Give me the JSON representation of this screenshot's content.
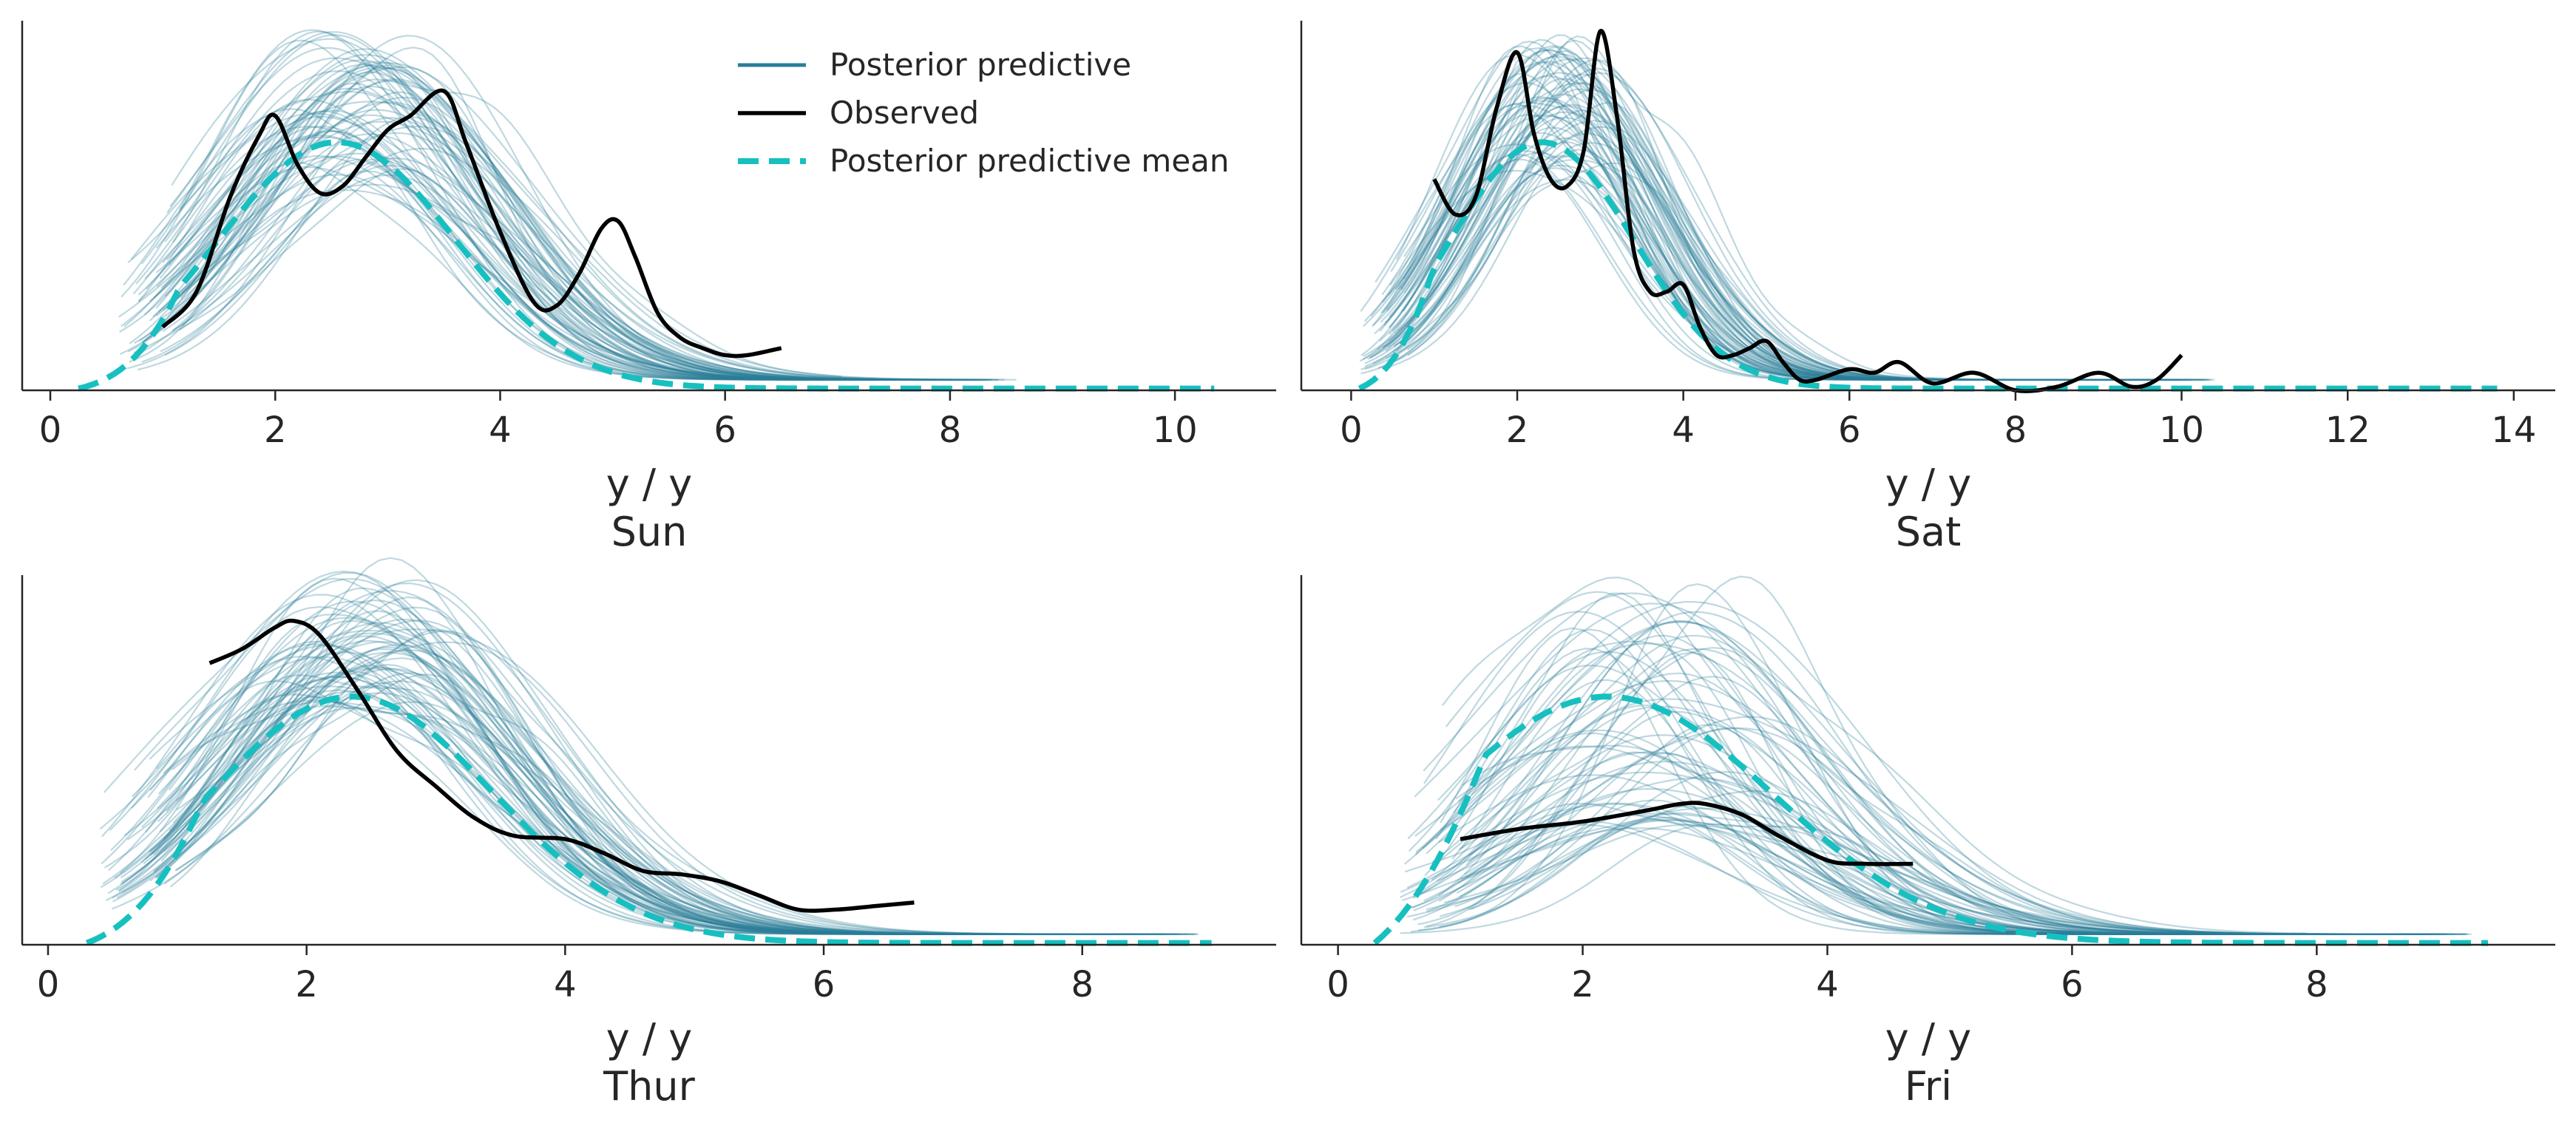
{
  "colors": {
    "posterior_predictive": "#2a7d99",
    "observed": "#000000",
    "posterior_mean": "#17c0c0",
    "axis": "#262626"
  },
  "legend": {
    "posterior_predictive": "Posterior predictive",
    "observed": "Observed",
    "posterior_mean": "Posterior predictive mean"
  },
  "chart_data": [
    {
      "type": "line",
      "panel": "Sun",
      "xlabel": "y / y",
      "title": "Sun",
      "xlim": [
        -0.25,
        10.9
      ],
      "ylim": [
        0,
        1.05
      ],
      "xticks": [
        0,
        2,
        4,
        6,
        8,
        10
      ],
      "grid": false,
      "legend_position": "top-right",
      "mean": {
        "mu": 2.55,
        "sigma": 1.05,
        "xmin": 0.25,
        "xmax": 10.35
      },
      "observed": {
        "x": [
          1.0,
          1.3,
          1.6,
          1.85,
          2.0,
          2.2,
          2.4,
          2.6,
          2.8,
          3.0,
          3.2,
          3.5,
          3.7,
          4.0,
          4.3,
          4.5,
          4.7,
          4.9,
          5.05,
          5.2,
          5.4,
          5.6,
          5.8,
          6.0,
          6.2,
          6.5
        ],
        "y": [
          0.18,
          0.28,
          0.55,
          0.72,
          0.78,
          0.64,
          0.56,
          0.58,
          0.66,
          0.74,
          0.78,
          0.85,
          0.7,
          0.45,
          0.25,
          0.24,
          0.33,
          0.46,
          0.48,
          0.38,
          0.22,
          0.15,
          0.12,
          0.1,
          0.1,
          0.12
        ]
      },
      "pp": {
        "count": 70,
        "mu": 2.75,
        "mu_spread": 0.5,
        "sigma": 1.15,
        "sigma_spread": 0.2,
        "xmin": 0.6,
        "xmax": 8.6,
        "peak_min": 0.55,
        "peak_max": 1.0
      }
    },
    {
      "type": "line",
      "panel": "Sat",
      "xlabel": "y / y",
      "title": "Sat",
      "xlim": [
        -0.6,
        14.5
      ],
      "ylim": [
        0,
        1.05
      ],
      "xticks": [
        0,
        2,
        4,
        6,
        8,
        10,
        12,
        14
      ],
      "grid": false,
      "mean": {
        "mu": 2.3,
        "sigma": 1.1,
        "xmin": 0.1,
        "xmax": 13.8
      },
      "observed": {
        "x": [
          1.0,
          1.25,
          1.5,
          1.75,
          2.0,
          2.2,
          2.4,
          2.6,
          2.8,
          3.0,
          3.2,
          3.4,
          3.6,
          3.8,
          4.0,
          4.2,
          4.4,
          4.6,
          4.8,
          5.0,
          5.2,
          5.4,
          5.6,
          6.0,
          6.3,
          6.6,
          7.0,
          7.5,
          8.0,
          8.5,
          9.0,
          9.4,
          9.7,
          10.0
        ],
        "y": [
          0.6,
          0.5,
          0.55,
          0.8,
          0.96,
          0.73,
          0.6,
          0.58,
          0.68,
          1.02,
          0.78,
          0.4,
          0.28,
          0.28,
          0.3,
          0.18,
          0.1,
          0.1,
          0.12,
          0.14,
          0.08,
          0.03,
          0.03,
          0.06,
          0.05,
          0.08,
          0.02,
          0.05,
          0.0,
          0.01,
          0.05,
          0.01,
          0.03,
          0.1
        ]
      },
      "pp": {
        "count": 70,
        "mu": 2.5,
        "mu_spread": 0.45,
        "sigma": 1.1,
        "sigma_spread": 0.18,
        "xmin": 0.1,
        "xmax": 10.4,
        "peak_min": 0.6,
        "peak_max": 0.95
      }
    },
    {
      "type": "line",
      "panel": "Thur",
      "xlabel": "y / y",
      "title": "Thur",
      "xlim": [
        -0.2,
        9.5
      ],
      "ylim": [
        0,
        1.05
      ],
      "xticks": [
        0,
        2,
        4,
        6,
        8
      ],
      "grid": false,
      "mean": {
        "mu": 2.35,
        "sigma": 1.1,
        "xmin": 0.3,
        "xmax": 9.0
      },
      "observed": {
        "x": [
          1.25,
          1.5,
          1.75,
          1.9,
          2.1,
          2.4,
          2.7,
          3.0,
          3.3,
          3.6,
          4.0,
          4.3,
          4.6,
          4.9,
          5.2,
          5.5,
          5.8,
          6.1,
          6.4,
          6.7
        ],
        "y": [
          0.8,
          0.84,
          0.9,
          0.92,
          0.88,
          0.72,
          0.55,
          0.45,
          0.36,
          0.31,
          0.3,
          0.26,
          0.21,
          0.2,
          0.18,
          0.14,
          0.1,
          0.1,
          0.11,
          0.12
        ]
      },
      "pp": {
        "count": 70,
        "mu": 2.45,
        "mu_spread": 0.45,
        "sigma": 1.15,
        "sigma_spread": 0.18,
        "xmin": 0.4,
        "xmax": 8.9,
        "peak_min": 0.65,
        "peak_max": 1.0
      }
    },
    {
      "type": "line",
      "panel": "Fri",
      "xlabel": "y / y",
      "title": "Fri",
      "xlim": [
        -0.3,
        9.95
      ],
      "ylim": [
        0,
        1.05
      ],
      "xticks": [
        0,
        2,
        4,
        6,
        8
      ],
      "grid": false,
      "mean": {
        "mu": 2.2,
        "sigma": 1.35,
        "xmin": 0.3,
        "xmax": 9.4
      },
      "observed": {
        "x": [
          1.0,
          1.5,
          2.0,
          2.5,
          2.8,
          3.0,
          3.3,
          3.6,
          4.0,
          4.3,
          4.7
        ],
        "y": [
          0.3,
          0.33,
          0.35,
          0.38,
          0.4,
          0.4,
          0.37,
          0.31,
          0.24,
          0.23,
          0.23
        ]
      },
      "pp": {
        "count": 70,
        "mu": 2.6,
        "mu_spread": 0.7,
        "sigma": 1.1,
        "sigma_spread": 0.35,
        "xmin": 0.5,
        "xmax": 9.3,
        "peak_min": 0.3,
        "peak_max": 1.0
      }
    }
  ]
}
